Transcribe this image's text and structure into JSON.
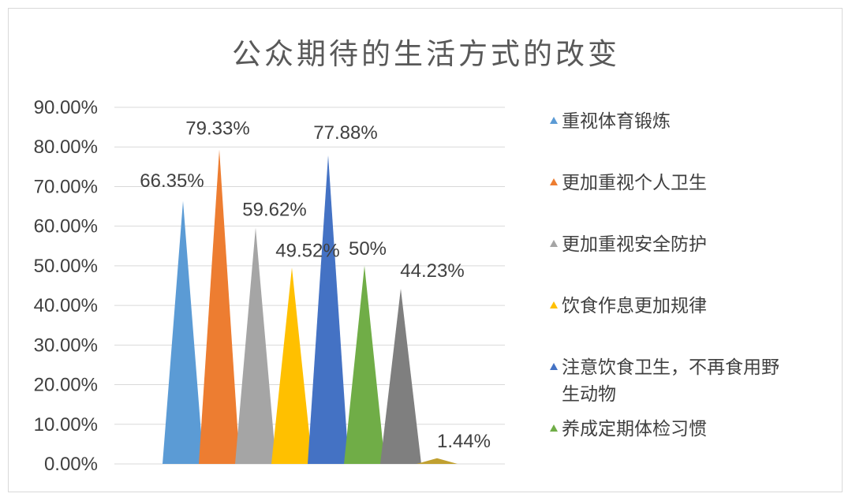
{
  "chart_data": {
    "type": "bar",
    "bar_shape": "triangle",
    "title": "公众期待的生活方式的改变",
    "xlabel": "",
    "ylabel": "",
    "ylim": [
      0,
      0.9
    ],
    "y_tick_step": 0.1,
    "y_tick_format": "percent_2dp",
    "grid": true,
    "legend_position": "right",
    "series": [
      {
        "name": "重视体育锻炼",
        "value": 0.6635,
        "label": "66.35%",
        "color": "#5B9BD5"
      },
      {
        "name": "更加重视个人卫生",
        "value": 0.7933,
        "label": "79.33%",
        "color": "#ED7D31"
      },
      {
        "name": "更加重视安全防护",
        "value": 0.5962,
        "label": "59.62%",
        "color": "#A5A5A5"
      },
      {
        "name": "饮食作息更加规律",
        "value": 0.4952,
        "label": "49.52%",
        "color": "#FFC000"
      },
      {
        "name": "注意饮食卫生，不再食用野生动物",
        "value": 0.7788,
        "label": "77.88%",
        "color": "#4472C4"
      },
      {
        "name": "养成定期体检习惯",
        "value": 0.5,
        "label": "50%",
        "color": "#70AD47"
      },
      {
        "name": "",
        "value": 0.4423,
        "label": "44.23%",
        "color": "#7F7F7F"
      },
      {
        "name": "",
        "value": 0.0144,
        "label": "1.44%",
        "color": "#C0A030"
      }
    ],
    "legend_entries": [
      {
        "lines": [
          "重视体育锻炼"
        ],
        "color": "#5B9BD5"
      },
      {
        "lines": [
          "更加重视个人卫生"
        ],
        "color": "#ED7D31"
      },
      {
        "lines": [
          "更加重视安全防护"
        ],
        "color": "#A5A5A5"
      },
      {
        "lines": [
          "饮食作息更加规律"
        ],
        "color": "#FFC000"
      },
      {
        "lines": [
          "注意饮食卫生，不再食用野",
          "生动物"
        ],
        "color": "#4472C4"
      },
      {
        "lines": [
          "养成定期体检习惯"
        ],
        "color": "#70AD47"
      }
    ]
  }
}
